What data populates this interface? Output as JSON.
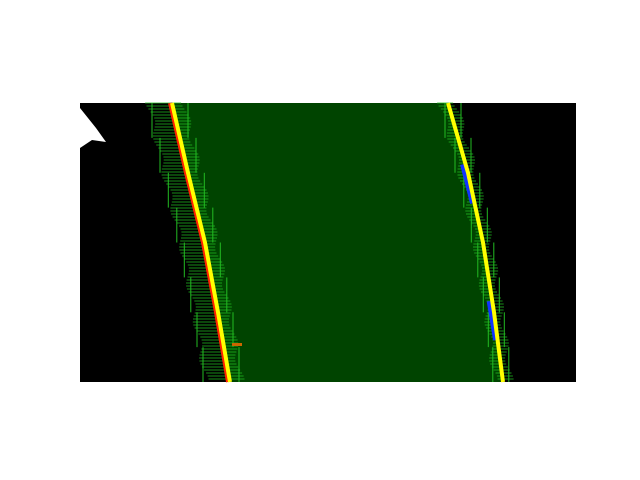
{
  "image": {
    "kind": "birds-eye lane detection visualization",
    "background_color": "#ffffff",
    "frame_color": "#000000",
    "lane_fill_color": "#004400",
    "search_window_color": "#22bb22",
    "left_pixels_color": "#ff2200",
    "right_pixels_color": "#1133ff",
    "fit_line_color": "#ffff00"
  },
  "lane": {
    "left_fit_polyline_x_by_row": [
      {
        "row": 0,
        "x": 172
      },
      {
        "row": 0.25,
        "x": 188
      },
      {
        "row": 0.5,
        "x": 205
      },
      {
        "row": 0.75,
        "x": 218
      },
      {
        "row": 1,
        "x": 230
      }
    ],
    "right_fit_polyline_x_by_row": [
      {
        "row": 0,
        "x": 448
      },
      {
        "row": 0.25,
        "x": 468
      },
      {
        "row": 0.5,
        "x": 483
      },
      {
        "row": 0.75,
        "x": 494
      },
      {
        "row": 1,
        "x": 503
      }
    ]
  }
}
